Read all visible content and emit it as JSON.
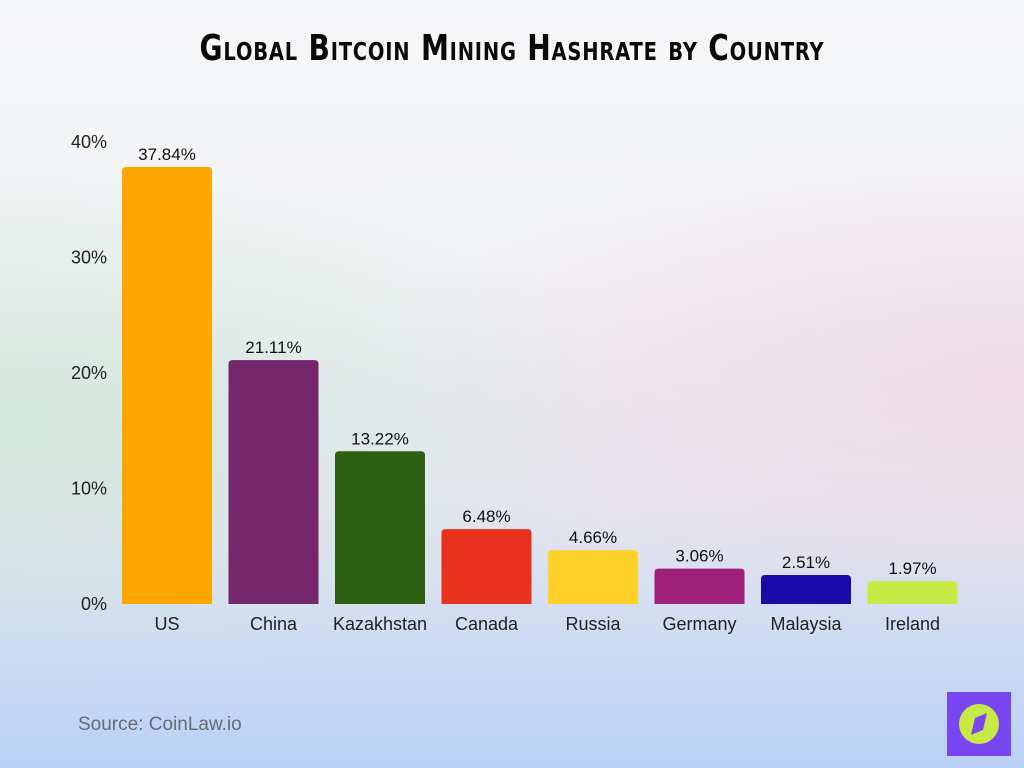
{
  "chart_data": {
    "type": "bar",
    "title": "Global Bitcoin Mining Hashrate by Country",
    "categories": [
      "US",
      "China",
      "Kazakhstan",
      "Canada",
      "Russia",
      "Germany",
      "Malaysia",
      "Ireland"
    ],
    "values": [
      37.84,
      21.11,
      13.22,
      6.48,
      4.66,
      3.06,
      2.51,
      1.97
    ],
    "data_labels": [
      "37.84%",
      "21.11%",
      "13.22%",
      "6.48%",
      "4.66%",
      "3.06%",
      "2.51%",
      "1.97%"
    ],
    "colors": [
      "#ffa500",
      "#74286b",
      "#2f5f12",
      "#e8321e",
      "#ffd12a",
      "#a01f78",
      "#1a0aa8",
      "#c8ea45"
    ],
    "yticks": [
      0,
      10,
      20,
      30,
      40
    ],
    "ytick_labels": [
      "0%",
      "10%",
      "20%",
      "30%",
      "40%"
    ],
    "ylim": [
      0,
      40
    ],
    "xlabel": "",
    "ylabel": "",
    "grid": false,
    "legend": "none"
  },
  "source": "Source: CoinLaw.io",
  "logo": {
    "icon": "compass-icon",
    "background": "#7a45f2",
    "accent": "#c8ea45"
  }
}
